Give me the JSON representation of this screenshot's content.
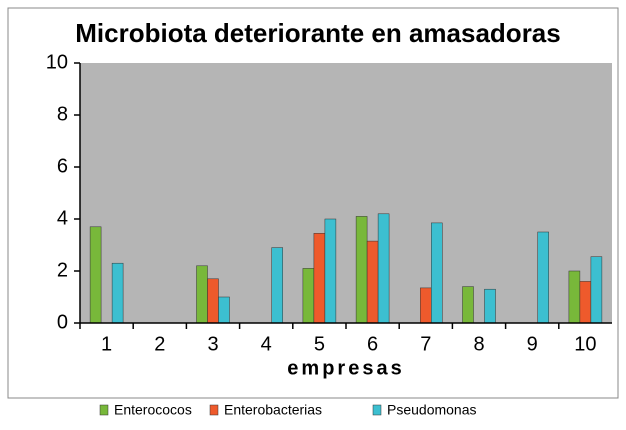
{
  "chart_data": {
    "type": "bar",
    "title": "Microbiota deteriorante en amasadoras",
    "x_label": "empresas",
    "categories": [
      "1",
      "2",
      "3",
      "4",
      "5",
      "6",
      "7",
      "8",
      "9",
      "10"
    ],
    "series": [
      {
        "name": "Enterococos",
        "color": "#78b83a",
        "values": [
          3.7,
          0,
          2.2,
          0,
          2.1,
          4.1,
          0,
          1.4,
          0,
          2.0
        ]
      },
      {
        "name": "Enterobacterias",
        "color": "#ee5a2c",
        "values": [
          0,
          0,
          1.7,
          0,
          3.45,
          3.15,
          1.35,
          0,
          0,
          1.6
        ]
      },
      {
        "name": "Pseudomonas",
        "color": "#3cbfd0",
        "values": [
          2.3,
          0,
          1.0,
          2.9,
          4.0,
          4.2,
          3.85,
          1.3,
          3.5,
          2.55
        ]
      }
    ],
    "ylim": [
      0,
      10
    ],
    "yticks": [
      0,
      2,
      4,
      6,
      8,
      10
    ],
    "legend": "bottom"
  }
}
